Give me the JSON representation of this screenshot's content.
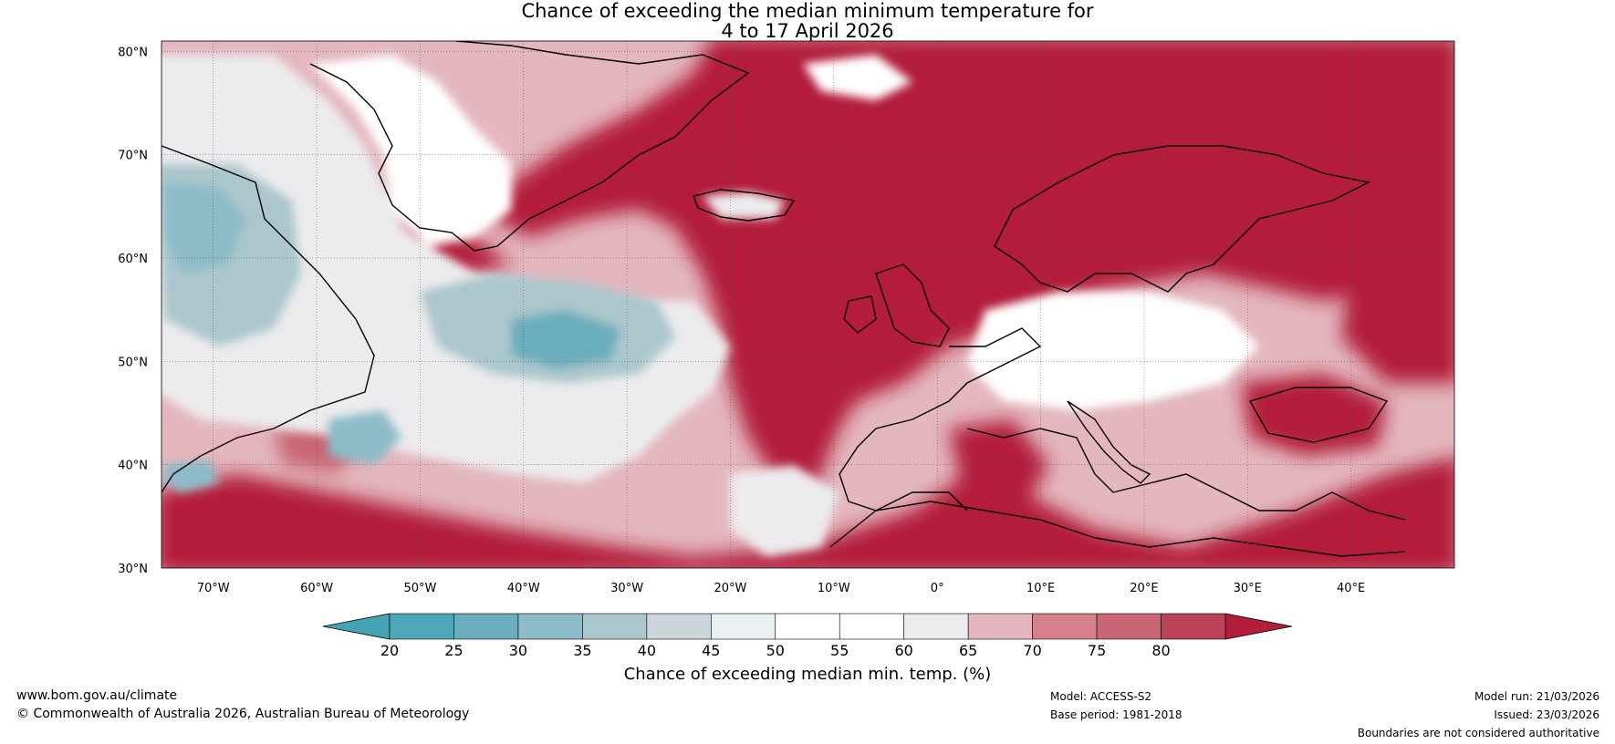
{
  "title": {
    "line1": "Chance of exceeding the median minimum temperature for",
    "line2": "4 to 17 April 2026"
  },
  "map": {
    "region": "North Atlantic and Europe",
    "lat_labels": [
      "80°N",
      "70°N",
      "60°N",
      "50°N",
      "40°N",
      "30°N"
    ],
    "lon_labels": [
      "70°W",
      "60°W",
      "50°W",
      "40°W",
      "30°W",
      "20°W",
      "10°W",
      "0°",
      "10°E",
      "20°E",
      "30°E",
      "40°E"
    ],
    "lon_values": [
      -70,
      -60,
      -50,
      -40,
      -30,
      -20,
      -10,
      0,
      10,
      20,
      30,
      40
    ],
    "lat_values": [
      80,
      70,
      60,
      50,
      40,
      30
    ],
    "lon_range": [
      -75,
      50
    ],
    "lat_range": [
      30,
      81
    ]
  },
  "colorbar": {
    "tick_labels": [
      "20",
      "25",
      "30",
      "35",
      "40",
      "45",
      "50",
      "55",
      "60",
      "65",
      "70",
      "75",
      "80"
    ],
    "bin_colors": [
      "#4ea7b8",
      "#6aaebd",
      "#8cbcc8",
      "#abc7cc",
      "#cbd6da",
      "#e9f0f2",
      "#ffffff",
      "#ffffff",
      "#ecebed",
      "#e3b7bd",
      "#d6808b",
      "#c96674",
      "#bb4358"
    ],
    "under_color": "#45a4b4",
    "over_color": "#b31e3a",
    "label": "Chance of exceeding median min. temp. (%)"
  },
  "colors": {
    "warm_strong": "#b31e3a",
    "warm_mid": "#c96674",
    "warm_light": "#e3b7bd",
    "neutral": "#ecebed",
    "cool_light": "#cbd6da",
    "cool_mid": "#8cbcc8",
    "cool_strong": "#4ea7b8"
  },
  "footer": {
    "url": "www.bom.gov.au/climate",
    "copyright": "© Commonwealth of Australia 2026, Australian Bureau of Meteorology",
    "model": "Model: ACCESS-S2",
    "base_period": "Base period: 1981-2018",
    "model_run": "Model run: 21/03/2026",
    "issued": "Issued: 23/03/2026",
    "boundaries": "Boundaries are not considered authoritative"
  }
}
